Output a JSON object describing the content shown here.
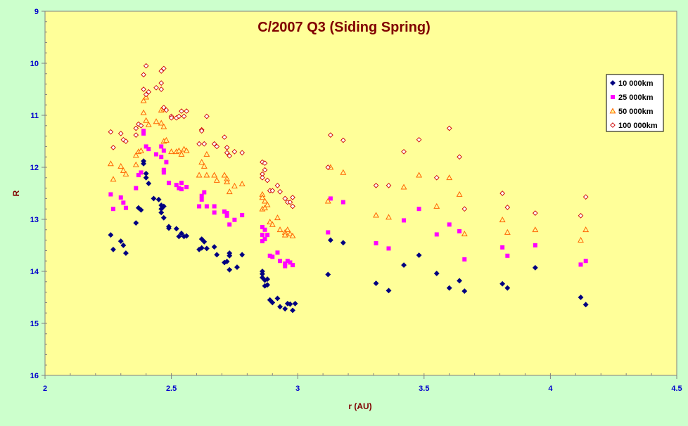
{
  "chart_data": {
    "type": "scatter",
    "title": "C/2007 Q3 (Siding Spring)",
    "xlabel": "r (AU)",
    "ylabel": "R",
    "xlim": [
      2,
      4.5
    ],
    "ylim": [
      9,
      16
    ],
    "y_inverted": true,
    "x_ticks": [
      "2",
      "2.5",
      "3",
      "3.5",
      "4",
      "4.5"
    ],
    "y_ticks": [
      "9",
      "10",
      "11",
      "12",
      "13",
      "14",
      "15",
      "16"
    ],
    "grid": false,
    "legend_position": "right",
    "colors": {
      "page_background": "#ccffcc",
      "plot_background": "#ffff99",
      "title": "#800000",
      "axis_labels": "#800000",
      "tick_labels": "#0000cc"
    },
    "series": [
      {
        "name": "10 000km",
        "marker": "diamond",
        "color": "#000080",
        "points": [
          [
            2.26,
            13.3
          ],
          [
            2.27,
            13.58
          ],
          [
            2.3,
            13.42
          ],
          [
            2.31,
            13.5
          ],
          [
            2.32,
            13.65
          ],
          [
            2.36,
            13.07
          ],
          [
            2.37,
            12.78
          ],
          [
            2.38,
            12.82
          ],
          [
            2.39,
            11.88
          ],
          [
            2.39,
            11.93
          ],
          [
            2.4,
            12.12
          ],
          [
            2.4,
            12.2
          ],
          [
            2.41,
            12.31
          ],
          [
            2.43,
            12.6
          ],
          [
            2.45,
            12.62
          ],
          [
            2.46,
            12.73
          ],
          [
            2.46,
            12.8
          ],
          [
            2.46,
            12.87
          ],
          [
            2.47,
            12.75
          ],
          [
            2.47,
            12.97
          ],
          [
            2.49,
            13.14
          ],
          [
            2.49,
            13.17
          ],
          [
            2.52,
            13.18
          ],
          [
            2.53,
            13.33
          ],
          [
            2.54,
            13.27
          ],
          [
            2.55,
            13.33
          ],
          [
            2.56,
            13.32
          ],
          [
            2.61,
            13.58
          ],
          [
            2.62,
            13.38
          ],
          [
            2.62,
            13.55
          ],
          [
            2.63,
            13.43
          ],
          [
            2.64,
            13.56
          ],
          [
            2.67,
            13.53
          ],
          [
            2.68,
            13.68
          ],
          [
            2.71,
            13.83
          ],
          [
            2.72,
            13.81
          ],
          [
            2.73,
            13.65
          ],
          [
            2.73,
            13.7
          ],
          [
            2.73,
            13.97
          ],
          [
            2.76,
            13.92
          ],
          [
            2.78,
            13.68
          ],
          [
            2.86,
            14.0
          ],
          [
            2.86,
            14.05
          ],
          [
            2.86,
            14.12
          ],
          [
            2.87,
            14.17
          ],
          [
            2.87,
            14.28
          ],
          [
            2.88,
            14.15
          ],
          [
            2.88,
            14.26
          ],
          [
            2.89,
            14.55
          ],
          [
            2.9,
            14.6
          ],
          [
            2.92,
            14.52
          ],
          [
            2.93,
            14.68
          ],
          [
            2.95,
            14.72
          ],
          [
            2.96,
            14.62
          ],
          [
            2.97,
            14.63
          ],
          [
            2.98,
            14.75
          ],
          [
            2.99,
            14.62
          ],
          [
            3.12,
            14.06
          ],
          [
            3.13,
            13.4
          ],
          [
            3.18,
            13.45
          ],
          [
            3.31,
            14.23
          ],
          [
            3.36,
            14.37
          ],
          [
            3.42,
            13.88
          ],
          [
            3.48,
            13.69
          ],
          [
            3.55,
            14.04
          ],
          [
            3.6,
            14.32
          ],
          [
            3.64,
            14.18
          ],
          [
            3.66,
            14.38
          ],
          [
            3.81,
            14.24
          ],
          [
            3.83,
            14.32
          ],
          [
            3.94,
            13.93
          ],
          [
            4.12,
            14.5
          ],
          [
            4.14,
            14.64
          ]
        ]
      },
      {
        "name": "25 000km",
        "marker": "square",
        "color": "#ff00ff",
        "points": [
          [
            2.26,
            12.52
          ],
          [
            2.27,
            12.8
          ],
          [
            2.3,
            12.58
          ],
          [
            2.31,
            12.68
          ],
          [
            2.32,
            12.78
          ],
          [
            2.36,
            12.4
          ],
          [
            2.37,
            12.15
          ],
          [
            2.38,
            12.1
          ],
          [
            2.39,
            11.3
          ],
          [
            2.39,
            11.35
          ],
          [
            2.4,
            11.6
          ],
          [
            2.41,
            11.65
          ],
          [
            2.44,
            11.75
          ],
          [
            2.46,
            11.6
          ],
          [
            2.46,
            11.8
          ],
          [
            2.47,
            12.05
          ],
          [
            2.47,
            12.1
          ],
          [
            2.47,
            11.68
          ],
          [
            2.48,
            11.9
          ],
          [
            2.49,
            12.3
          ],
          [
            2.52,
            12.34
          ],
          [
            2.53,
            12.4
          ],
          [
            2.54,
            12.3
          ],
          [
            2.54,
            12.42
          ],
          [
            2.56,
            12.38
          ],
          [
            2.61,
            12.75
          ],
          [
            2.62,
            12.55
          ],
          [
            2.62,
            12.62
          ],
          [
            2.63,
            12.48
          ],
          [
            2.64,
            12.75
          ],
          [
            2.67,
            12.75
          ],
          [
            2.67,
            12.87
          ],
          [
            2.71,
            12.85
          ],
          [
            2.72,
            12.88
          ],
          [
            2.72,
            12.93
          ],
          [
            2.73,
            13.1
          ],
          [
            2.75,
            13.01
          ],
          [
            2.78,
            12.92
          ],
          [
            2.86,
            13.15
          ],
          [
            2.86,
            13.3
          ],
          [
            2.86,
            13.42
          ],
          [
            2.87,
            13.2
          ],
          [
            2.87,
            13.38
          ],
          [
            2.88,
            13.3
          ],
          [
            2.89,
            13.7
          ],
          [
            2.9,
            13.72
          ],
          [
            2.92,
            13.64
          ],
          [
            2.93,
            13.8
          ],
          [
            2.95,
            13.85
          ],
          [
            2.95,
            13.9
          ],
          [
            2.96,
            13.8
          ],
          [
            2.97,
            13.83
          ],
          [
            2.98,
            13.88
          ],
          [
            3.12,
            13.25
          ],
          [
            3.13,
            12.6
          ],
          [
            3.18,
            12.67
          ],
          [
            3.31,
            13.46
          ],
          [
            3.36,
            13.56
          ],
          [
            3.42,
            13.02
          ],
          [
            3.48,
            12.8
          ],
          [
            3.55,
            13.29
          ],
          [
            3.6,
            13.1
          ],
          [
            3.64,
            13.23
          ],
          [
            3.66,
            13.77
          ],
          [
            3.81,
            13.54
          ],
          [
            3.83,
            13.7
          ],
          [
            3.94,
            13.5
          ],
          [
            4.12,
            13.87
          ],
          [
            4.14,
            13.8
          ]
        ]
      },
      {
        "name": "50 000km",
        "marker": "triangle",
        "color": "#ff6600",
        "points": [
          [
            2.26,
            11.93
          ],
          [
            2.27,
            12.23
          ],
          [
            2.3,
            11.98
          ],
          [
            2.31,
            12.06
          ],
          [
            2.32,
            12.13
          ],
          [
            2.36,
            11.95
          ],
          [
            2.36,
            11.77
          ],
          [
            2.37,
            11.7
          ],
          [
            2.38,
            11.68
          ],
          [
            2.39,
            10.95
          ],
          [
            2.39,
            10.72
          ],
          [
            2.4,
            10.65
          ],
          [
            2.4,
            11.1
          ],
          [
            2.41,
            11.18
          ],
          [
            2.44,
            11.12
          ],
          [
            2.46,
            10.9
          ],
          [
            2.46,
            11.15
          ],
          [
            2.47,
            11.5
          ],
          [
            2.47,
            10.88
          ],
          [
            2.47,
            11.22
          ],
          [
            2.48,
            11.48
          ],
          [
            2.5,
            11.7
          ],
          [
            2.52,
            11.7
          ],
          [
            2.53,
            11.68
          ],
          [
            2.54,
            11.75
          ],
          [
            2.55,
            11.65
          ],
          [
            2.56,
            11.68
          ],
          [
            2.61,
            12.15
          ],
          [
            2.62,
            11.9
          ],
          [
            2.63,
            11.98
          ],
          [
            2.64,
            11.75
          ],
          [
            2.64,
            12.15
          ],
          [
            2.67,
            12.15
          ],
          [
            2.68,
            12.25
          ],
          [
            2.71,
            12.15
          ],
          [
            2.72,
            12.22
          ],
          [
            2.72,
            12.28
          ],
          [
            2.73,
            12.47
          ],
          [
            2.75,
            12.36
          ],
          [
            2.78,
            12.32
          ],
          [
            2.86,
            12.52
          ],
          [
            2.86,
            12.58
          ],
          [
            2.86,
            12.8
          ],
          [
            2.87,
            12.65
          ],
          [
            2.87,
            12.78
          ],
          [
            2.88,
            12.72
          ],
          [
            2.89,
            13.05
          ],
          [
            2.9,
            13.1
          ],
          [
            2.92,
            12.97
          ],
          [
            2.93,
            13.2
          ],
          [
            2.95,
            13.25
          ],
          [
            2.95,
            13.3
          ],
          [
            2.96,
            13.2
          ],
          [
            2.97,
            13.28
          ],
          [
            2.98,
            13.32
          ],
          [
            3.12,
            12.65
          ],
          [
            3.13,
            12.0
          ],
          [
            3.18,
            12.1
          ],
          [
            3.31,
            12.92
          ],
          [
            3.36,
            12.96
          ],
          [
            3.42,
            12.38
          ],
          [
            3.48,
            12.15
          ],
          [
            3.55,
            12.75
          ],
          [
            3.6,
            12.2
          ],
          [
            3.64,
            12.52
          ],
          [
            3.66,
            13.28
          ],
          [
            3.81,
            13.01
          ],
          [
            3.83,
            13.25
          ],
          [
            3.94,
            13.2
          ],
          [
            4.12,
            13.4
          ],
          [
            4.14,
            13.2
          ]
        ]
      },
      {
        "name": "100 000km",
        "marker": "open-diamond",
        "color": "#cc0000",
        "points": [
          [
            2.26,
            11.32
          ],
          [
            2.27,
            11.62
          ],
          [
            2.3,
            11.35
          ],
          [
            2.31,
            11.47
          ],
          [
            2.32,
            11.5
          ],
          [
            2.36,
            11.38
          ],
          [
            2.36,
            11.25
          ],
          [
            2.37,
            11.17
          ],
          [
            2.38,
            11.2
          ],
          [
            2.39,
            10.22
          ],
          [
            2.39,
            10.5
          ],
          [
            2.4,
            10.05
          ],
          [
            2.4,
            10.6
          ],
          [
            2.41,
            10.55
          ],
          [
            2.44,
            10.47
          ],
          [
            2.46,
            10.15
          ],
          [
            2.46,
            10.38
          ],
          [
            2.46,
            10.5
          ],
          [
            2.47,
            10.1
          ],
          [
            2.47,
            10.85
          ],
          [
            2.48,
            10.9
          ],
          [
            2.5,
            11.02
          ],
          [
            2.5,
            11.05
          ],
          [
            2.52,
            11.05
          ],
          [
            2.53,
            11.02
          ],
          [
            2.54,
            10.92
          ],
          [
            2.55,
            11.02
          ],
          [
            2.56,
            10.92
          ],
          [
            2.61,
            11.55
          ],
          [
            2.62,
            11.28
          ],
          [
            2.62,
            11.3
          ],
          [
            2.63,
            11.55
          ],
          [
            2.64,
            11.02
          ],
          [
            2.67,
            11.55
          ],
          [
            2.68,
            11.6
          ],
          [
            2.71,
            11.42
          ],
          [
            2.72,
            11.62
          ],
          [
            2.72,
            11.72
          ],
          [
            2.73,
            11.78
          ],
          [
            2.75,
            11.7
          ],
          [
            2.78,
            11.72
          ],
          [
            2.86,
            11.9
          ],
          [
            2.86,
            12.13
          ],
          [
            2.86,
            12.2
          ],
          [
            2.87,
            11.92
          ],
          [
            2.87,
            12.05
          ],
          [
            2.88,
            12.25
          ],
          [
            2.89,
            12.45
          ],
          [
            2.9,
            12.45
          ],
          [
            2.92,
            12.35
          ],
          [
            2.93,
            12.47
          ],
          [
            2.95,
            12.6
          ],
          [
            2.96,
            12.67
          ],
          [
            2.97,
            12.67
          ],
          [
            2.98,
            12.75
          ],
          [
            2.98,
            12.58
          ],
          [
            3.12,
            12.0
          ],
          [
            3.13,
            11.38
          ],
          [
            3.18,
            11.48
          ],
          [
            3.31,
            12.35
          ],
          [
            3.36,
            12.35
          ],
          [
            3.42,
            11.7
          ],
          [
            3.48,
            11.47
          ],
          [
            3.55,
            12.2
          ],
          [
            3.6,
            11.25
          ],
          [
            3.64,
            11.8
          ],
          [
            3.66,
            12.8
          ],
          [
            3.81,
            12.5
          ],
          [
            3.83,
            12.77
          ],
          [
            3.94,
            12.88
          ],
          [
            4.12,
            12.93
          ],
          [
            4.14,
            12.57
          ]
        ]
      }
    ]
  }
}
